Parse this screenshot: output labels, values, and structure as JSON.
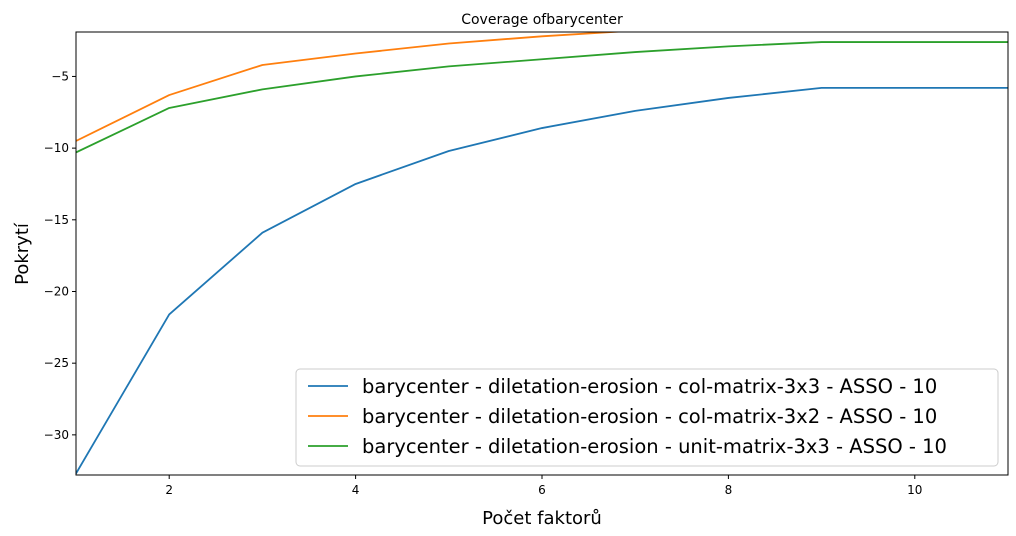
{
  "chart_data": {
    "type": "line",
    "title": "Coverage ofbarycenter",
    "xlabel": "Počet faktorů",
    "ylabel": "Pokrytí",
    "xlim": [
      1,
      11
    ],
    "ylim": [
      -32.8,
      -1.9
    ],
    "xticks": [
      2,
      4,
      6,
      8,
      10
    ],
    "yticks": [
      -5,
      -10,
      -15,
      -20,
      -25,
      -30
    ],
    "grid": false,
    "legend_position": "lower-right",
    "x": [
      1,
      2,
      3,
      4,
      5,
      6,
      7,
      8,
      9,
      10,
      11
    ],
    "series": [
      {
        "name": "barycenter - diletation-erosion - col-matrix-3x3 - ASSO - 10",
        "color": "#1f77b4",
        "values": [
          -32.7,
          -21.6,
          -15.9,
          -12.5,
          -10.2,
          -8.6,
          -7.4,
          -6.5,
          -5.8,
          -5.8,
          -5.8
        ]
      },
      {
        "name": "barycenter - diletation-erosion - col-matrix-3x2 - ASSO - 10",
        "color": "#ff7f0e",
        "values": [
          -9.5,
          -6.3,
          -4.2,
          -3.4,
          -2.7,
          -2.2,
          -1.8,
          -1.5,
          -1.2,
          -1.0,
          -0.9
        ]
      },
      {
        "name": "barycenter - diletation-erosion - unit-matrix-3x3 - ASSO - 10",
        "color": "#2ca02c",
        "values": [
          -10.3,
          -7.2,
          -5.9,
          -5.0,
          -4.3,
          -3.8,
          -3.3,
          -2.9,
          -2.6,
          -2.6,
          -2.6
        ]
      }
    ]
  }
}
